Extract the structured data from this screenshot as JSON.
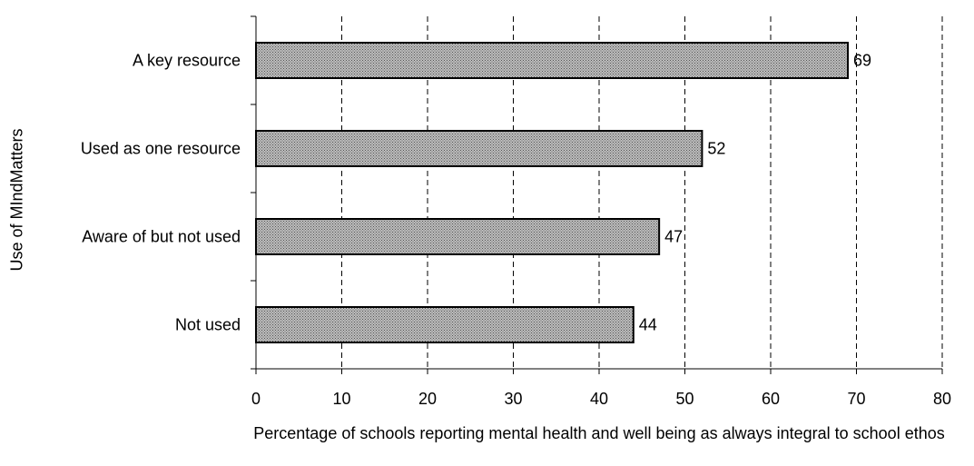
{
  "chart_data": {
    "type": "bar",
    "orientation": "horizontal",
    "categories": [
      "A key resource",
      "Used as one resource",
      "Aware of but not used",
      "Not used"
    ],
    "values": [
      69,
      52,
      47,
      44
    ],
    "data_labels": [
      "69",
      "52",
      "47",
      "44"
    ],
    "title": "",
    "xlabel": "Percentage of schools reporting mental health and well being as always integral to school ethos",
    "ylabel": "Use of MIndMatters",
    "xlim": [
      0,
      80
    ],
    "xticks": [
      "0",
      "10",
      "20",
      "30",
      "40",
      "50",
      "60",
      "70",
      "80"
    ],
    "grid": "vertical dashed",
    "legend": "none"
  },
  "colors": {
    "bar_fill": "#a9a9a9",
    "bar_stroke": "#000000",
    "grid": "#000000"
  }
}
